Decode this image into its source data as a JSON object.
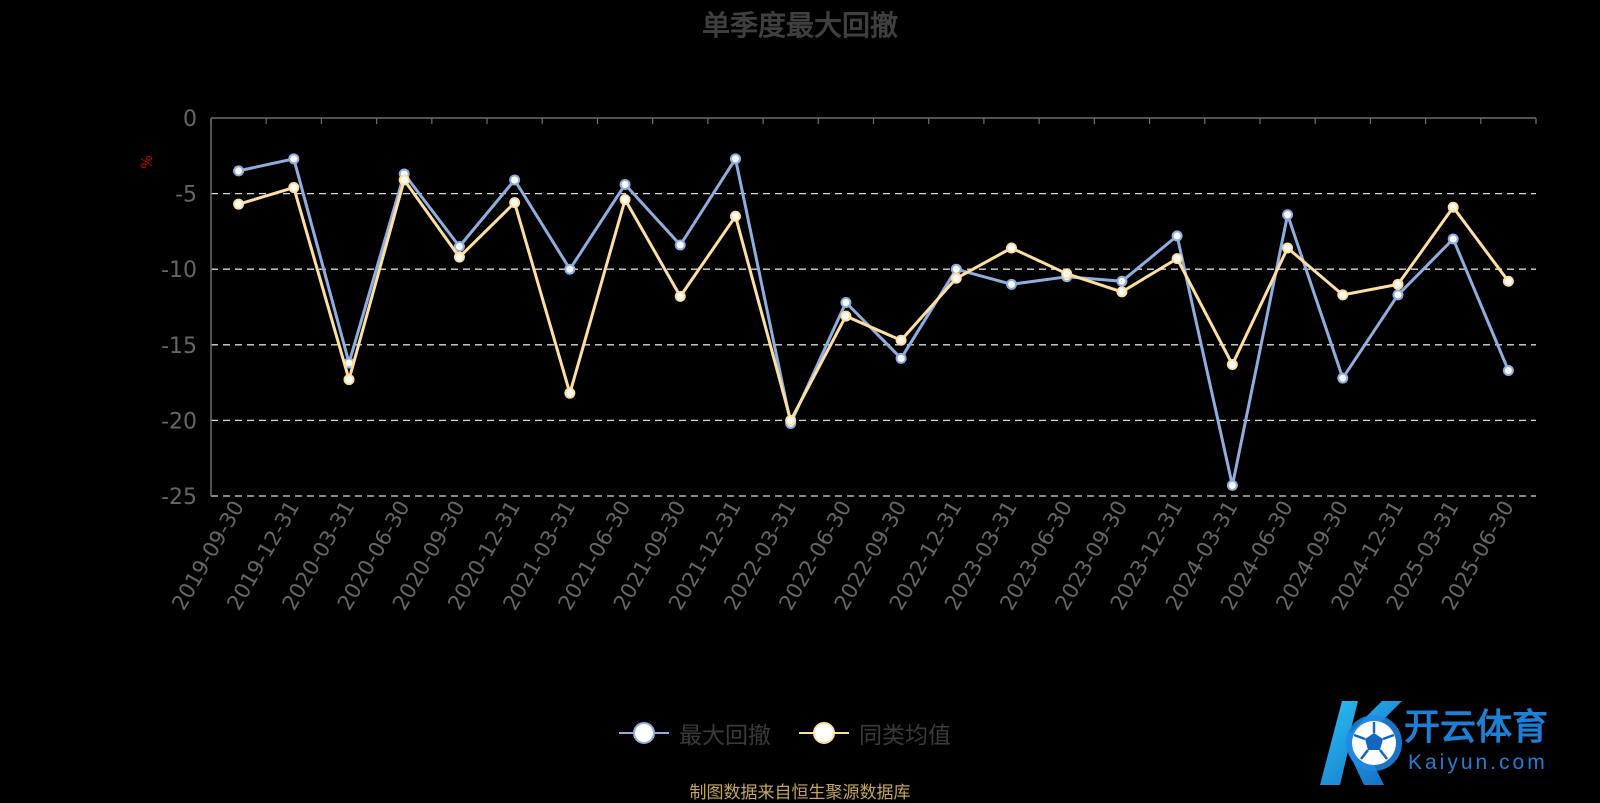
{
  "title": "单季度最大回撤",
  "y_unit_label": "%",
  "legend": [
    {
      "name": "最大回撤",
      "color": "#8eaee0"
    },
    {
      "name": "同类均值",
      "color": "#fedfa0"
    }
  ],
  "source_note": "制图数据来自恒生聚源数据库",
  "logo": {
    "text_cn": "开云体育",
    "text_en": "Kaiyun.com",
    "icon": "soccer-ball-k-logo-icon"
  },
  "colors": {
    "background": "#000000",
    "grid": "#d9d9d9",
    "axis": "#6e6e6e",
    "tick_text": "#666666",
    "unit": "#cc0000"
  },
  "chart_data": {
    "type": "line",
    "title": "单季度最大回撤",
    "ylabel": "%",
    "xlabel": "",
    "ylim": [
      -25,
      0
    ],
    "yticks": [
      0,
      -5,
      -10,
      -15,
      -20,
      -25
    ],
    "grid": true,
    "legend_position": "bottom-center",
    "categories": [
      "2019-09-30",
      "2019-12-31",
      "2020-03-31",
      "2020-06-30",
      "2020-09-30",
      "2020-12-31",
      "2021-03-31",
      "2021-06-30",
      "2021-09-30",
      "2021-12-31",
      "2022-03-31",
      "2022-06-30",
      "2022-09-30",
      "2022-12-31",
      "2023-03-31",
      "2023-06-30",
      "2023-09-30",
      "2023-12-31",
      "2024-03-31",
      "2024-06-30",
      "2024-09-30",
      "2024-12-31",
      "2025-03-31",
      "2025-06-30"
    ],
    "series": [
      {
        "name": "最大回撤",
        "color": "#8eaee0",
        "values": [
          -3.5,
          -2.7,
          -16.2,
          -3.7,
          -8.5,
          -4.1,
          -10.0,
          -4.4,
          -8.4,
          -2.7,
          -20.2,
          -12.2,
          -15.9,
          -10.0,
          -11.0,
          -10.5,
          -10.8,
          -7.8,
          -24.3,
          -6.4,
          -17.2,
          -11.7,
          -8.0,
          -16.7
        ]
      },
      {
        "name": "同类均值",
        "color": "#fedfa0",
        "values": [
          -5.7,
          -4.6,
          -17.3,
          -4.1,
          -9.2,
          -5.6,
          -18.2,
          -5.4,
          -11.8,
          -6.5,
          -20.0,
          -13.1,
          -14.7,
          -10.6,
          -8.6,
          -10.3,
          -11.5,
          -9.3,
          -16.3,
          -8.6,
          -11.7,
          -11.0,
          -5.9,
          -10.8
        ]
      }
    ]
  }
}
